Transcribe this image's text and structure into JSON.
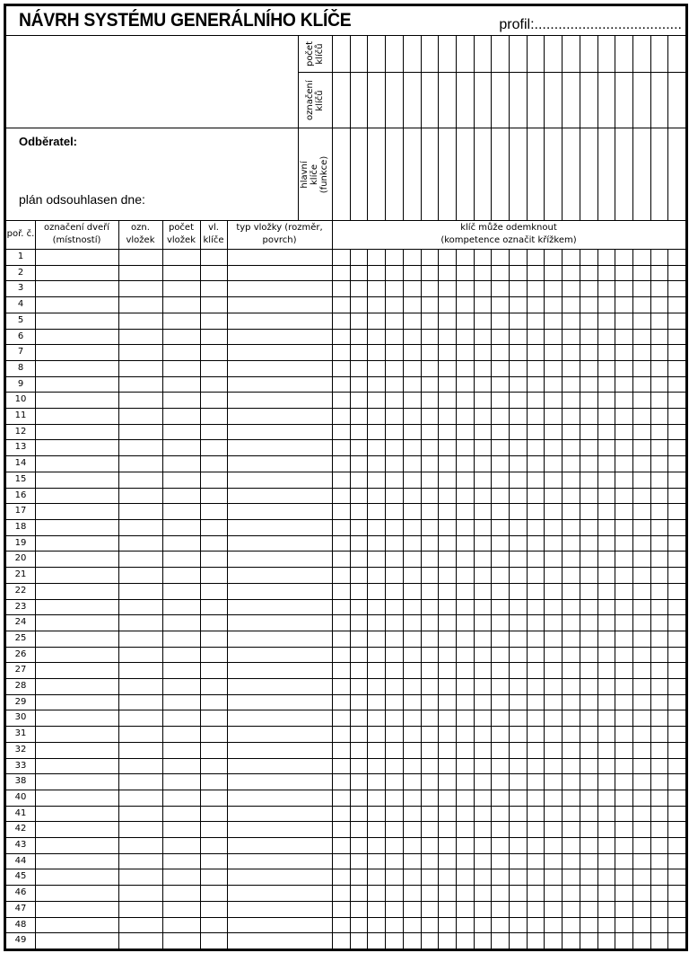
{
  "title": "NÁVRH SYSTÉMU GENERÁLNÍHO KLÍČE",
  "profil_label": "profil:.....................................",
  "top_rows": {
    "pocet_klicu": "počet klíčů",
    "oznaceni_klicu": "označení klíčů",
    "hlavni_klice": "hlavní klíče (funkce)"
  },
  "odberatel_label": "Odběratel:",
  "plan_label": "plán odsouhlasen dne:",
  "columns": {
    "por": "poř. č.",
    "oznaceni_dveri": "označení dveří (místností)",
    "ozn_vlozek": "ozn. vložek",
    "pocet_vlozek": "počet vložek",
    "vl_klice": "vl. klíče",
    "typ_vlozky": "typ vložky (rozměr, povrch)",
    "klic_muze": "klíč může odemknout (kompetence označit křížkem)"
  },
  "key_column_count": 20,
  "row_numbers": [
    "1",
    "2",
    "3",
    "4",
    "5",
    "6",
    "7",
    "8",
    "9",
    "10",
    "11",
    "12",
    "13",
    "14",
    "15",
    "16",
    "17",
    "18",
    "19",
    "20",
    "21",
    "22",
    "23",
    "24",
    "25",
    "26",
    "27",
    "28",
    "29",
    "30",
    "31",
    "32",
    "33",
    "38",
    "40",
    "41",
    "42",
    "43",
    "44",
    "45",
    "46",
    "47",
    "48",
    "49"
  ]
}
